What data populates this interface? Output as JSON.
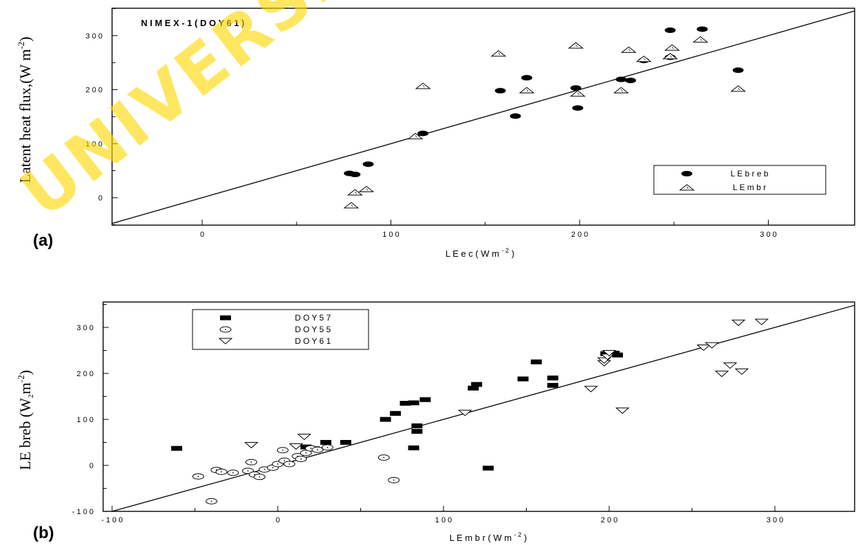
{
  "watermark_text": "UNIVERSITY",
  "colors": {
    "watermark": "#ffd400",
    "ink": "#000000"
  },
  "chart_data": [
    {
      "type": "scatter",
      "panel_label": "(a)",
      "annotation": "N I M E X - 1   ( D O Y   6 1 )",
      "xlabel": "L E   e c   ( W   m",
      "xlabel_sup": "- 2",
      "ylabel": "Latent heat flux,(W m",
      "ylabel_sup": "-2",
      "ylim": [
        -50,
        350
      ],
      "xlim": [
        -50,
        350
      ],
      "xticks": [
        0,
        100,
        200,
        300
      ],
      "xtick_labels": [
        "0",
        "1 0 0",
        "2 0 0",
        "3 0 0"
      ],
      "yticks": [
        0,
        100,
        200,
        300
      ],
      "ytick_labels": [
        "0",
        "1 0 0",
        "2 0 0",
        "3 0 0"
      ],
      "legend_position": "bottom-right",
      "reference_line": {
        "from": [
          -50,
          -50
        ],
        "to": [
          350,
          350
        ]
      },
      "series": [
        {
          "name": "L E   b r e b",
          "marker": "filled-ellipse",
          "points": [
            [
              78,
              45
            ],
            [
              81,
              43
            ],
            [
              88,
              62
            ],
            [
              117,
              119
            ],
            [
              158,
              198
            ],
            [
              166,
              151
            ],
            [
              172,
              222
            ],
            [
              198,
              203
            ],
            [
              199,
              166
            ],
            [
              222,
              219
            ],
            [
              227,
              217
            ],
            [
              234,
              254
            ],
            [
              248,
              310
            ],
            [
              248,
              260
            ],
            [
              265,
              312
            ],
            [
              284,
              236
            ]
          ]
        },
        {
          "name": "L E   m b r",
          "marker": "triangle-up",
          "points": [
            [
              79,
              -14
            ],
            [
              81,
              10
            ],
            [
              87,
              16
            ],
            [
              113,
              114
            ],
            [
              117,
              207
            ],
            [
              157,
              267
            ],
            [
              172,
              199
            ],
            [
              198,
              282
            ],
            [
              199,
              193
            ],
            [
              222,
              199
            ],
            [
              226,
              274
            ],
            [
              234,
              257
            ],
            [
              248,
              262
            ],
            [
              249,
              278
            ],
            [
              264,
              293
            ],
            [
              284,
              202
            ]
          ]
        }
      ]
    },
    {
      "type": "scatter",
      "panel_label": "(b)",
      "xlabel": "L E   m b r   ( W   m",
      "xlabel_sup": "- 2",
      "ylabel": "LE breb (W",
      "ylabel_sub": "2",
      "ylabel_mid": "m",
      "ylabel_sup": "-2",
      "ylim": [
        -100,
        350
      ],
      "xlim": [
        -100,
        350
      ],
      "xticks": [
        -100,
        0,
        100,
        200,
        300
      ],
      "xtick_labels": [
        "- 1 0 0",
        "0",
        "1 0 0",
        "2 0 0",
        "3 0 0"
      ],
      "yticks": [
        -100,
        0,
        100,
        200,
        300
      ],
      "ytick_labels": [
        "- 1 0 0",
        "0",
        "1 0 0",
        "2 0 0",
        "3 0 0"
      ],
      "legend_position": "top-left",
      "reference_line": {
        "from": [
          -100,
          -100
        ],
        "to": [
          350,
          350
        ]
      },
      "series": [
        {
          "name": "D   O   Y     5   7",
          "marker": "filled-rect",
          "points": [
            [
              -61,
              37
            ],
            [
              17,
              40
            ],
            [
              22,
              36
            ],
            [
              29,
              50
            ],
            [
              41,
              50
            ],
            [
              65,
              100
            ],
            [
              71,
              113
            ],
            [
              77,
              135
            ],
            [
              82,
              136
            ],
            [
              82,
              38
            ],
            [
              84,
              86
            ],
            [
              84,
              74
            ],
            [
              89,
              143
            ],
            [
              118,
              168
            ],
            [
              120,
              176
            ],
            [
              127,
              -6
            ],
            [
              148,
              188
            ],
            [
              156,
              225
            ],
            [
              166,
              190
            ],
            [
              166,
              174
            ],
            [
              198,
              243
            ],
            [
              203,
              244
            ],
            [
              205,
              240
            ]
          ]
        },
        {
          "name": "D   O   Y     5   5",
          "marker": "open-ellipse",
          "points": [
            [
              -48,
              -24
            ],
            [
              -40,
              -78
            ],
            [
              -37,
              -10
            ],
            [
              -34,
              -14
            ],
            [
              -27,
              -16
            ],
            [
              -18,
              -12
            ],
            [
              -16,
              7
            ],
            [
              -14,
              -20
            ],
            [
              -11,
              -25
            ],
            [
              -8,
              -9
            ],
            [
              -3,
              -5
            ],
            [
              0,
              3
            ],
            [
              3,
              33
            ],
            [
              4,
              10
            ],
            [
              7,
              3
            ],
            [
              12,
              20
            ],
            [
              14,
              14
            ],
            [
              17,
              27
            ],
            [
              20,
              37
            ],
            [
              24,
              34
            ],
            [
              30,
              39
            ],
            [
              64,
              17
            ],
            [
              70,
              -32
            ]
          ]
        },
        {
          "name": "D   O   Y     6   1",
          "marker": "triangle-down",
          "points": [
            [
              -16,
              44
            ],
            [
              11,
              41
            ],
            [
              16,
              62
            ],
            [
              113,
              114
            ],
            [
              189,
              166
            ],
            [
              197,
              222
            ],
            [
              197,
              228
            ],
            [
              199,
              236
            ],
            [
              200,
              244
            ],
            [
              208,
              119
            ],
            [
              257,
              256
            ],
            [
              262,
              261
            ],
            [
              268,
              199
            ],
            [
              273,
              217
            ],
            [
              278,
              310
            ],
            [
              280,
              204
            ],
            [
              292,
              312
            ]
          ]
        }
      ]
    }
  ]
}
